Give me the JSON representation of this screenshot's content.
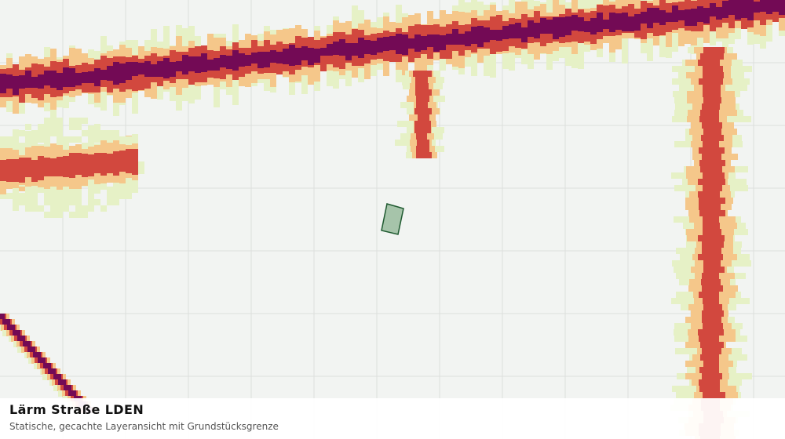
{
  "caption": {
    "title": "Lärm Straße LDEN",
    "subtitle": "Statische, gecachte Layeransicht mit Grundstücksgrenze"
  },
  "map": {
    "grid": true,
    "noise_classes": [
      {
        "name": "lowest",
        "color": "#e6f1c6"
      },
      {
        "name": "low",
        "color": "#f5c78a"
      },
      {
        "name": "high",
        "color": "#d2483e"
      },
      {
        "name": "highest",
        "color": "#730a55"
      }
    ],
    "parcel": {
      "fill": "#a6c4aa",
      "stroke": "#1f5a30"
    }
  }
}
